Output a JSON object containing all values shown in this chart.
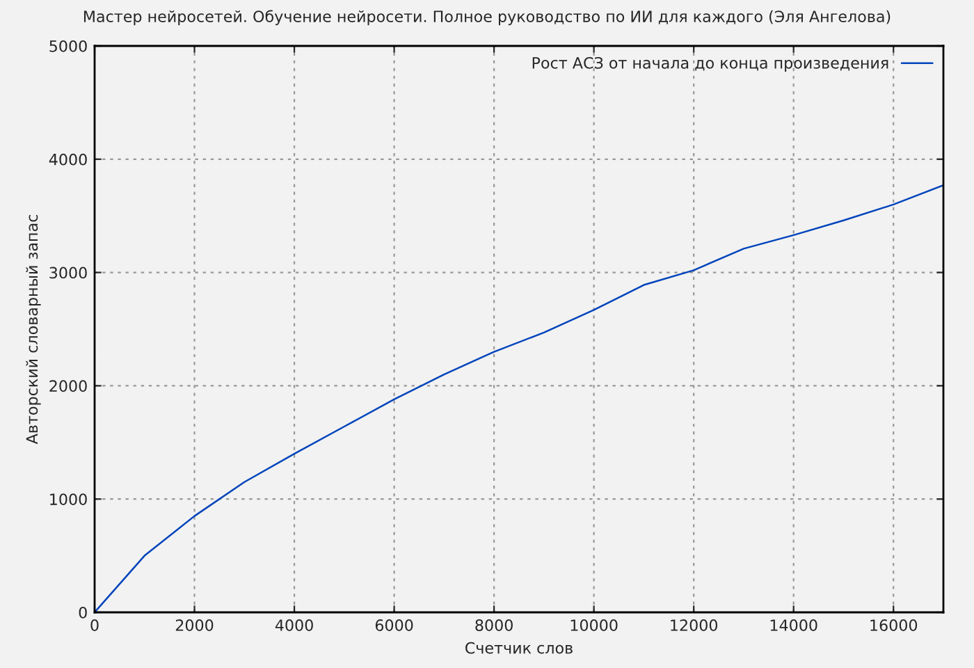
{
  "chart_data": {
    "type": "line",
    "title": "Мастер нейросетей. Обучение нейросети. Полное руководство по ИИ для каждого (Эля Ангелова)",
    "xlabel": "Счетчик слов",
    "ylabel": "Авторский словарный запас",
    "x": [
      0,
      1000,
      2000,
      3000,
      4000,
      5000,
      6000,
      7000,
      8000,
      9000,
      10000,
      11000,
      12000,
      13000,
      14000,
      15000,
      16000,
      17000
    ],
    "series": [
      {
        "name": "Рост АСЗ от начала до конца произведения",
        "color": "#0044bb",
        "values": [
          0,
          500,
          850,
          1150,
          1400,
          1640,
          1880,
          2100,
          2300,
          2470,
          2670,
          2890,
          3020,
          3210,
          3330,
          3460,
          3600,
          3770
        ]
      }
    ],
    "xlim": [
      0,
      17000
    ],
    "xticks": [
      0,
      2000,
      4000,
      6000,
      8000,
      10000,
      12000,
      14000,
      16000
    ],
    "ylim": [
      0,
      5000
    ],
    "yticks": [
      0,
      1000,
      2000,
      3000,
      4000,
      5000
    ],
    "grid": true,
    "legend": "top right",
    "line_style": "solid",
    "marker": "none"
  }
}
